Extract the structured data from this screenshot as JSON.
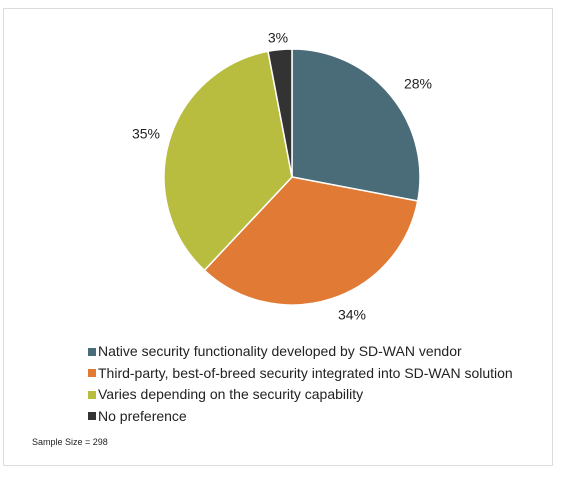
{
  "chart_data": {
    "type": "pie",
    "title": "",
    "slices": [
      {
        "label": "Native security functionality developed by SD-WAN vendor",
        "value": 28,
        "display": "28%",
        "color": "#4a6b78"
      },
      {
        "label": "Third-party, best-of-breed security integrated into SD-WAN solution",
        "value": 34,
        "display": "34%",
        "color": "#e07a34"
      },
      {
        "label": "Varies depending on the security capability",
        "value": 35,
        "display": "35%",
        "color": "#b8bd3f"
      },
      {
        "label": "No preference",
        "value": 3,
        "display": "3%",
        "color": "#333333"
      }
    ],
    "start_angle_deg": 0,
    "direction": "clockwise",
    "legend_position": "bottom"
  },
  "note": "Sample Size = 298"
}
